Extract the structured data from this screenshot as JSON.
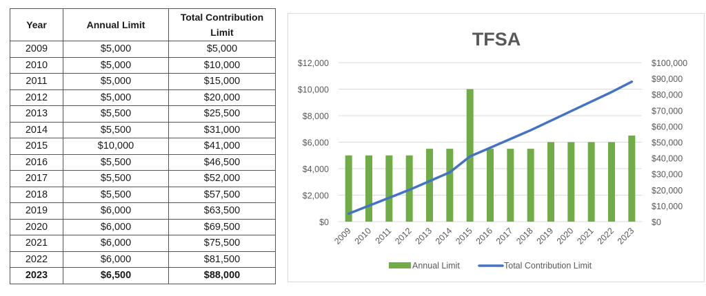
{
  "table": {
    "headers": [
      "Year",
      "Annual Limit",
      "Total Contribution Limit"
    ],
    "rows": [
      [
        "2009",
        "$5,000",
        "$5,000"
      ],
      [
        "2010",
        "$5,000",
        "$10,000"
      ],
      [
        "2011",
        "$5,000",
        "$15,000"
      ],
      [
        "2012",
        "$5,000",
        "$20,000"
      ],
      [
        "2013",
        "$5,500",
        "$25,500"
      ],
      [
        "2014",
        "$5,500",
        "$31,000"
      ],
      [
        "2015",
        "$10,000",
        "$41,000"
      ],
      [
        "2016",
        "$5,500",
        "$46,500"
      ],
      [
        "2017",
        "$5,500",
        "$52,000"
      ],
      [
        "2018",
        "$5,500",
        "$57,500"
      ],
      [
        "2019",
        "$6,000",
        "$63,500"
      ],
      [
        "2020",
        "$6,000",
        "$69,500"
      ],
      [
        "2021",
        "$6,000",
        "$75,500"
      ],
      [
        "2022",
        "$6,000",
        "$81,500"
      ],
      [
        "2023",
        "$6,500",
        "$88,000"
      ]
    ]
  },
  "chart_data": {
    "type": "bar",
    "title": "TFSA",
    "categories": [
      "2009",
      "2010",
      "2011",
      "2012",
      "2013",
      "2014",
      "2015",
      "2016",
      "2017",
      "2018",
      "2019",
      "2020",
      "2021",
      "2022",
      "2023"
    ],
    "series": [
      {
        "name": "Annual Limit",
        "type": "bar",
        "axis": "left",
        "color": "#70ad47",
        "values": [
          5000,
          5000,
          5000,
          5000,
          5500,
          5500,
          10000,
          5500,
          5500,
          5500,
          6000,
          6000,
          6000,
          6000,
          6500
        ]
      },
      {
        "name": "Total Contribution Limit",
        "type": "line",
        "axis": "right",
        "color": "#4472c4",
        "values": [
          5000,
          10000,
          15000,
          20000,
          25500,
          31000,
          41000,
          46500,
          52000,
          57500,
          63500,
          69500,
          75500,
          81500,
          88000
        ]
      }
    ],
    "y_left": {
      "ylim": [
        0,
        12000
      ],
      "ticks": [
        "$0",
        "$2,000",
        "$4,000",
        "$6,000",
        "$8,000",
        "$10,000",
        "$12,000"
      ]
    },
    "y_right": {
      "ylim": [
        0,
        100000
      ],
      "ticks": [
        "$0",
        "$10,000",
        "$20,000",
        "$30,000",
        "$40,000",
        "$50,000",
        "$60,000",
        "$70,000",
        "$80,000",
        "$90,000",
        "$100,000"
      ]
    },
    "xlabel": "",
    "ylabel": "",
    "grid": true,
    "legend_position": "bottom"
  }
}
